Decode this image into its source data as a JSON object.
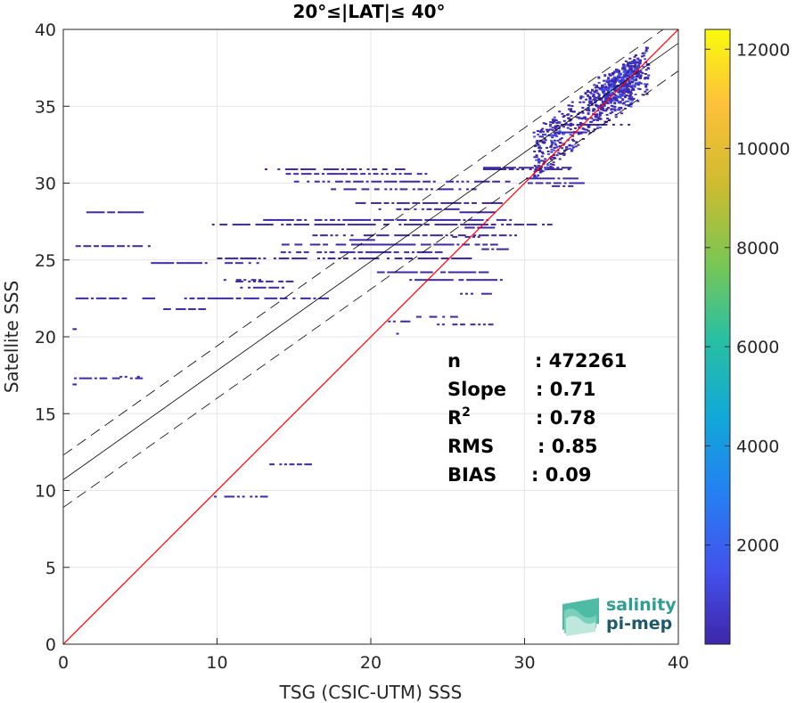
{
  "chart_data": {
    "type": "heatmap",
    "title": "20°≤|LAT|≤ 40°",
    "xlabel": "TSG (CSIC-UTM) SSS",
    "ylabel": "Satellite SSS",
    "xlim": [
      0,
      40
    ],
    "ylim": [
      0,
      40
    ],
    "xticks": [
      "0",
      "10",
      "20",
      "30",
      "40"
    ],
    "yticks": [
      "0",
      "5",
      "10",
      "15",
      "20",
      "25",
      "30",
      "35",
      "40"
    ],
    "grid": true,
    "colorbar": {
      "range": [
        0,
        12400
      ],
      "ticks": [
        "2000",
        "4000",
        "6000",
        "8000",
        "10000",
        "12000"
      ],
      "tick_values": [
        2000,
        4000,
        6000,
        8000,
        10000,
        12000
      ],
      "colormap": [
        "#3e26a8",
        "#4352ee",
        "#2481f1",
        "#11a8d8",
        "#2ac0a1",
        "#7ac653",
        "#cfbb2f",
        "#fdc13a",
        "#f8fa0d"
      ]
    },
    "lines": {
      "one_to_one": {
        "slope": 1,
        "intercept": 0,
        "color": "#ff0000"
      },
      "fit": {
        "slope": 0.71,
        "intercept": 10.7,
        "color": "#000000"
      },
      "fit_upper": {
        "slope": 0.71,
        "intercept": 12.3,
        "style": "dashed"
      },
      "fit_lower": {
        "slope": 0.71,
        "intercept": 8.9,
        "style": "dashed"
      }
    },
    "stats": [
      {
        "label": "n",
        "value": ": 472261"
      },
      {
        "label": "Slope",
        "value": ": 0.71"
      },
      {
        "label": "R",
        "sup": "2",
        "value": ": 0.78"
      },
      {
        "label": "RMS",
        "value": ": 0.85"
      },
      {
        "label": "BIAS",
        "value": ": 0.09"
      }
    ],
    "segments": [
      [
        1.5,
        28.1,
        5.4,
        0.4
      ],
      [
        0.8,
        25.9,
        5.5,
        0.3
      ],
      [
        0.8,
        22.5,
        5.8,
        0.3
      ],
      [
        0.6,
        20.5,
        0.9,
        0.3
      ],
      [
        0.7,
        17.3,
        5.0,
        0.3
      ],
      [
        0.6,
        16.9,
        0.9,
        0.3
      ],
      [
        5.7,
        24.8,
        9.2,
        0.3
      ],
      [
        10.0,
        25.1,
        12.4,
        0.4
      ],
      [
        10.5,
        24.8,
        12.9,
        0.3
      ],
      [
        11.2,
        23.6,
        14.8,
        0.4
      ],
      [
        11.5,
        23.2,
        14.2,
        0.3
      ],
      [
        7.7,
        22.5,
        17.1,
        0.3
      ],
      [
        9.5,
        27.3,
        31.8,
        0.3
      ],
      [
        13.0,
        27.6,
        29.0,
        0.4
      ],
      [
        14.2,
        26.0,
        28.1,
        0.4
      ],
      [
        13.8,
        25.5,
        24.5,
        0.3
      ],
      [
        11.5,
        25.1,
        26.4,
        0.3
      ],
      [
        16.2,
        26.6,
        30.0,
        0.3
      ],
      [
        14.3,
        30.6,
        23.5,
        0.4
      ],
      [
        13.1,
        30.9,
        22.4,
        0.3
      ],
      [
        15.0,
        30.1,
        28.9,
        0.3
      ],
      [
        17.4,
        29.6,
        27.2,
        0.3
      ],
      [
        19.0,
        28.7,
        28.4,
        0.3
      ],
      [
        20.5,
        28.3,
        25.6,
        0.3
      ],
      [
        25.6,
        28.1,
        28.1,
        0.4
      ],
      [
        26.1,
        27.1,
        27.9,
        0.4
      ],
      [
        25.3,
        26.5,
        27.1,
        0.3
      ],
      [
        27.2,
        25.7,
        28.8,
        0.3
      ],
      [
        20.4,
        24.2,
        27.5,
        0.4
      ],
      [
        22.0,
        23.7,
        28.4,
        0.3
      ],
      [
        25.8,
        22.8,
        27.7,
        0.3
      ],
      [
        18.6,
        26.3,
        20.6,
        0.3
      ],
      [
        27.3,
        31.0,
        32.9,
        0.4
      ],
      [
        30.1,
        30.3,
        33.5,
        0.4
      ],
      [
        31.6,
        29.8,
        33.0,
        0.4
      ],
      [
        20.8,
        21.0,
        22.4,
        0.2
      ],
      [
        22.1,
        21.3,
        25.5,
        0.2
      ],
      [
        24.3,
        20.8,
        27.8,
        0.2
      ],
      [
        21.3,
        20.2,
        22.0,
        0.2
      ],
      [
        13.4,
        11.7,
        16.0,
        0.2
      ],
      [
        9.8,
        9.6,
        13.3,
        0.2
      ],
      [
        6.5,
        21.8,
        9.1,
        0.3
      ],
      [
        10.1,
        23.7,
        12.7,
        0.3
      ],
      [
        3.5,
        17.4,
        4.8,
        0.2
      ],
      [
        27.3,
        30.9,
        32.8,
        0.4
      ],
      [
        30.2,
        30.0,
        33.9,
        0.3
      ],
      [
        32.4,
        33.8,
        36.7,
        0.5
      ],
      [
        31.9,
        33.3,
        33.9,
        0.5
      ]
    ],
    "dense_cloud": [
      [
        36.0,
        36.5,
        1400,
        0.9
      ],
      [
        36.4,
        36.8,
        3200,
        0.5
      ],
      [
        35.8,
        36.2,
        2500,
        0.4
      ],
      [
        36.6,
        37.1,
        2000,
        0.4
      ],
      [
        35.2,
        35.7,
        1200,
        0.6
      ],
      [
        34.6,
        35.2,
        900,
        0.6
      ]
    ]
  },
  "logo": {
    "line1": "salinity",
    "line2": "pi-mep"
  }
}
